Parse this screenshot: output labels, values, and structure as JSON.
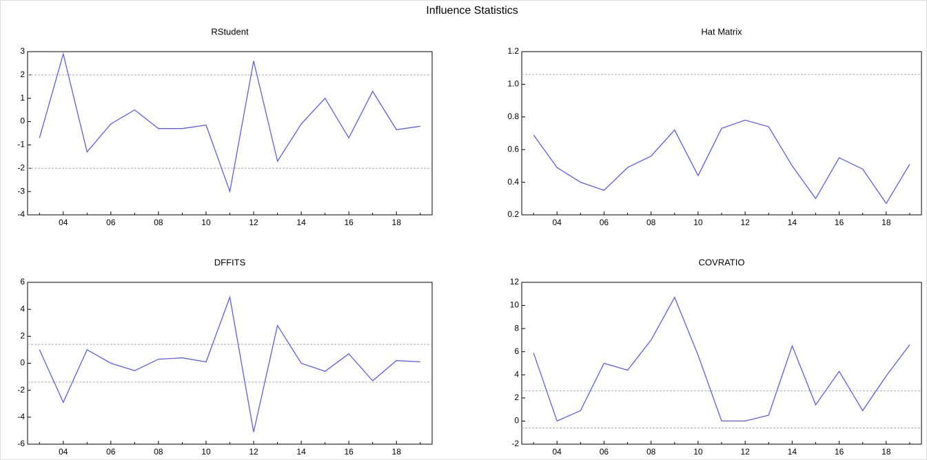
{
  "title": "Influence Statistics",
  "chart_data": [
    {
      "type": "line",
      "title": "RStudent",
      "categories": [
        null,
        "04",
        null,
        "06",
        null,
        "08",
        null,
        "10",
        null,
        "12",
        null,
        "14",
        null,
        "16",
        null,
        "18",
        null
      ],
      "values": [
        -0.7,
        2.9,
        -1.3,
        -0.1,
        0.5,
        -0.3,
        -0.3,
        -0.15,
        -3.0,
        2.6,
        -1.7,
        -0.1,
        1.0,
        -0.7,
        1.3,
        -0.35,
        -0.2
      ],
      "color": "#5a5aff",
      "ylim": [
        -4,
        3
      ],
      "yticks": [
        -4,
        -3,
        -2,
        -1,
        0,
        1,
        2,
        3
      ],
      "reference_lines": [
        -2,
        2
      ]
    },
    {
      "type": "line",
      "title": "Hat Matrix",
      "categories": [
        null,
        "04",
        null,
        "06",
        null,
        "08",
        null,
        "10",
        null,
        "12",
        null,
        "14",
        null,
        "16",
        null,
        "18",
        null
      ],
      "values": [
        0.69,
        0.49,
        0.4,
        0.35,
        0.49,
        0.56,
        0.72,
        0.44,
        0.73,
        0.78,
        0.74,
        0.5,
        0.3,
        0.55,
        0.48,
        0.27,
        0.51
      ],
      "color": "#5a5aff",
      "ylim": [
        0.2,
        1.2
      ],
      "yticks": [
        0.2,
        0.4,
        0.6,
        0.8,
        {
          "value": 1,
          "label": "1.0"
        },
        1.2
      ],
      "reference_lines": [
        1.06
      ]
    },
    {
      "type": "line",
      "title": "DFFITS",
      "categories": [
        null,
        "04",
        null,
        "06",
        null,
        "08",
        null,
        "10",
        null,
        "12",
        null,
        "14",
        null,
        "16",
        null,
        "18",
        null
      ],
      "values": [
        1.0,
        -2.9,
        1.0,
        0.0,
        -0.55,
        0.3,
        0.4,
        0.1,
        4.9,
        -5.1,
        2.8,
        0.0,
        -0.6,
        0.7,
        -1.3,
        0.2,
        0.1
      ],
      "color": "#5a5aff",
      "ylim": [
        -6,
        6
      ],
      "yticks": [
        -6,
        -4,
        -2,
        0,
        2,
        4,
        6
      ],
      "reference_lines": [
        -1.4,
        1.4
      ]
    },
    {
      "type": "line",
      "title": "COVRATIO",
      "categories": [
        null,
        "04",
        null,
        "06",
        null,
        "08",
        null,
        "10",
        null,
        "12",
        null,
        "14",
        null,
        "16",
        null,
        "18",
        null
      ],
      "values": [
        5.9,
        0.0,
        0.9,
        5.0,
        4.4,
        7.0,
        10.7,
        5.7,
        0.0,
        0.0,
        0.5,
        6.5,
        1.4,
        4.3,
        0.9,
        3.9,
        6.6
      ],
      "color": "#5a5aff",
      "ylim": [
        -2,
        12
      ],
      "yticks": [
        -2,
        0,
        2,
        4,
        6,
        8,
        10,
        12
      ],
      "reference_lines": [
        -0.6,
        2.6
      ]
    }
  ]
}
